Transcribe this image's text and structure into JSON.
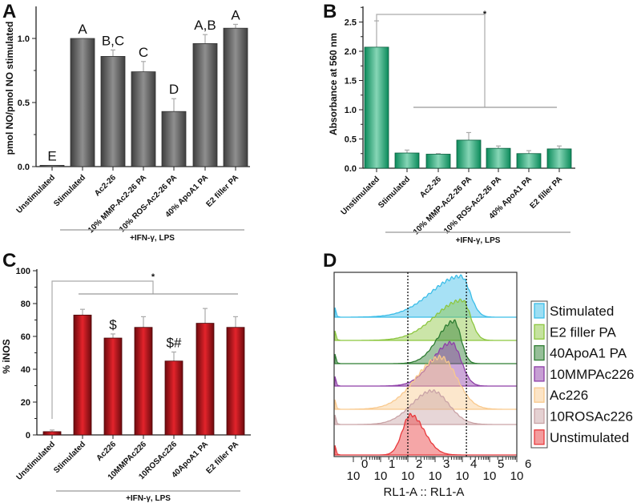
{
  "chart_data": [
    {
      "panel": "A",
      "type": "bar",
      "title": "",
      "ylabel": "pmol NO/pmol NO stimulated",
      "xlabel": "",
      "ylim": [
        0,
        1.25
      ],
      "yticks": [
        "0.0",
        "0.5",
        "1.0"
      ],
      "ytick_values": [
        0,
        0.5,
        1.0
      ],
      "categories": [
        "Unstimulated",
        "Stimulated",
        "Ac2-26",
        "10% MMP-Ac2-26 PA",
        "10% ROS-Ac2-26 PA",
        "40% ApoA1 PA",
        "E2 filler PA"
      ],
      "values": [
        0.01,
        1.0,
        0.86,
        0.74,
        0.43,
        0.96,
        1.08
      ],
      "errors": [
        0.0,
        0.0,
        0.05,
        0.08,
        0.1,
        0.07,
        0.03
      ],
      "annotations": [
        "E",
        "A",
        "B,C",
        "C",
        "D",
        "A,B",
        "A"
      ],
      "group_label": "+IFN-γ, LPS",
      "color": "#6e6e6e"
    },
    {
      "panel": "B",
      "type": "bar",
      "title": "",
      "ylabel": "Absorbance at 560 nm",
      "xlabel": "",
      "ylim": [
        0,
        2.75
      ],
      "yticks": [
        "0.0",
        "0.5",
        "1.0",
        "1.5",
        "2.0",
        "2.5"
      ],
      "ytick_values": [
        0,
        0.5,
        1.0,
        1.5,
        2.0,
        2.5
      ],
      "categories": [
        "Unstimulated",
        "Stimulated",
        "Ac2-26",
        "10% MMP-Ac2-26 PA",
        "10% ROS-Ac2-26 PA",
        "40% ApoA1 PA",
        "E2 filler PA"
      ],
      "values": [
        2.07,
        0.26,
        0.24,
        0.48,
        0.34,
        0.25,
        0.33
      ],
      "errors": [
        0.45,
        0.05,
        0.01,
        0.13,
        0.04,
        0.05,
        0.05
      ],
      "annotations": [
        "",
        "",
        "",
        "",
        "",
        "",
        ""
      ],
      "significance": "*",
      "group_label": "+IFN-γ, LPS",
      "color": "#1a9e6e"
    },
    {
      "panel": "C",
      "type": "bar",
      "title": "",
      "ylabel": "% iNOS",
      "xlabel": "",
      "ylim": [
        0,
        100
      ],
      "yticks": [
        "0",
        "20",
        "40",
        "60",
        "80",
        "100"
      ],
      "ytick_values": [
        0,
        20,
        40,
        60,
        80,
        100
      ],
      "categories": [
        "Unstimulated",
        "Stimulated",
        "Ac226",
        "10MMPAc226",
        "10ROSAc226",
        "40ApoA1 PA",
        "E2 filler PA"
      ],
      "values": [
        2,
        73,
        59,
        65.5,
        45,
        68,
        65.5
      ],
      "errors": [
        1,
        3.5,
        2.5,
        6.5,
        5.5,
        9,
        6.5
      ],
      "annotations": [
        "",
        "",
        "$",
        "",
        "$#",
        "",
        ""
      ],
      "significance": "*",
      "group_label": "+IFN-γ, LPS",
      "color": "#c8161d"
    },
    {
      "panel": "D",
      "type": "area",
      "title": "",
      "xlabel": "RL1-A :: RL1-A",
      "ylabel": "",
      "xscale": "log",
      "x_ticks": [
        {
          "base": "10",
          "exp": "0"
        },
        {
          "base": "10",
          "exp": "1"
        },
        {
          "base": "10",
          "exp": "2"
        },
        {
          "base": "10",
          "exp": "3"
        },
        {
          "base": "10",
          "exp": "4"
        },
        {
          "base": "10",
          "exp": "5"
        },
        {
          "base": "10",
          "exp": "6"
        }
      ],
      "gates_log10": [
        2.0,
        4.15
      ],
      "legend_position": "right",
      "series": [
        {
          "name": "Stimulated",
          "color": "#3bbde8",
          "peak_log10": 3.95,
          "spread_left": 1.1,
          "spread_right": 0.33
        },
        {
          "name": "E2 filler PA",
          "color": "#8cc63f",
          "peak_log10": 4.0,
          "spread_left": 1.0,
          "spread_right": 0.3
        },
        {
          "name": "40ApoA1 PA",
          "color": "#2e7d32",
          "peak_log10": 3.7,
          "spread_left": 0.6,
          "spread_right": 0.25
        },
        {
          "name": "10MMPAc226",
          "color": "#8e3fa8",
          "peak_log10": 3.6,
          "spread_left": 0.7,
          "spread_right": 0.35
        },
        {
          "name": "Ac226",
          "color": "#f9c98d",
          "peak_log10": 3.2,
          "spread_left": 0.9,
          "spread_right": 0.6
        },
        {
          "name": "10ROSAc226",
          "color": "#c9a3a6",
          "peak_log10": 2.9,
          "spread_left": 0.75,
          "spread_right": 0.6
        },
        {
          "name": "Unstimulated",
          "color": "#e8393c",
          "peak_log10": 2.1,
          "spread_left": 0.3,
          "spread_right": 0.5
        }
      ]
    }
  ]
}
